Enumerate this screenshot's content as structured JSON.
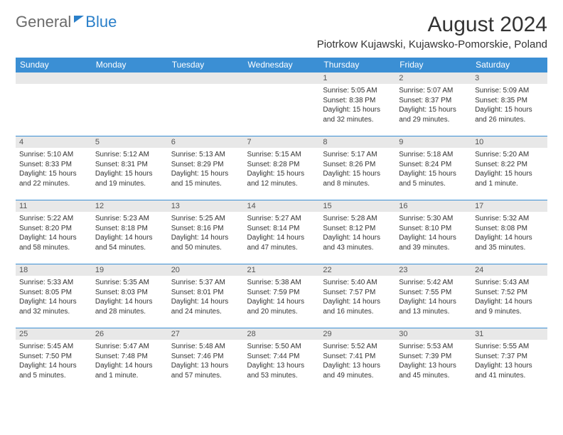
{
  "logo": {
    "text1": "General",
    "text2": "Blue"
  },
  "title": "August 2024",
  "location": "Piotrkow Kujawski, Kujawsko-Pomorskie, Poland",
  "weekdays": [
    "Sunday",
    "Monday",
    "Tuesday",
    "Wednesday",
    "Thursday",
    "Friday",
    "Saturday"
  ],
  "colors": {
    "header_bg": "#3b8fd4",
    "header_text": "#ffffff",
    "daynum_bg": "#e8e8e8",
    "day_border": "#3b8fd4",
    "text": "#333333"
  },
  "weeks": [
    [
      {
        "empty": true
      },
      {
        "empty": true
      },
      {
        "empty": true
      },
      {
        "empty": true
      },
      {
        "num": "1",
        "sunrise": "Sunrise: 5:05 AM",
        "sunset": "Sunset: 8:38 PM",
        "daylight": "Daylight: 15 hours and 32 minutes."
      },
      {
        "num": "2",
        "sunrise": "Sunrise: 5:07 AM",
        "sunset": "Sunset: 8:37 PM",
        "daylight": "Daylight: 15 hours and 29 minutes."
      },
      {
        "num": "3",
        "sunrise": "Sunrise: 5:09 AM",
        "sunset": "Sunset: 8:35 PM",
        "daylight": "Daylight: 15 hours and 26 minutes."
      }
    ],
    [
      {
        "num": "4",
        "sunrise": "Sunrise: 5:10 AM",
        "sunset": "Sunset: 8:33 PM",
        "daylight": "Daylight: 15 hours and 22 minutes."
      },
      {
        "num": "5",
        "sunrise": "Sunrise: 5:12 AM",
        "sunset": "Sunset: 8:31 PM",
        "daylight": "Daylight: 15 hours and 19 minutes."
      },
      {
        "num": "6",
        "sunrise": "Sunrise: 5:13 AM",
        "sunset": "Sunset: 8:29 PM",
        "daylight": "Daylight: 15 hours and 15 minutes."
      },
      {
        "num": "7",
        "sunrise": "Sunrise: 5:15 AM",
        "sunset": "Sunset: 8:28 PM",
        "daylight": "Daylight: 15 hours and 12 minutes."
      },
      {
        "num": "8",
        "sunrise": "Sunrise: 5:17 AM",
        "sunset": "Sunset: 8:26 PM",
        "daylight": "Daylight: 15 hours and 8 minutes."
      },
      {
        "num": "9",
        "sunrise": "Sunrise: 5:18 AM",
        "sunset": "Sunset: 8:24 PM",
        "daylight": "Daylight: 15 hours and 5 minutes."
      },
      {
        "num": "10",
        "sunrise": "Sunrise: 5:20 AM",
        "sunset": "Sunset: 8:22 PM",
        "daylight": "Daylight: 15 hours and 1 minute."
      }
    ],
    [
      {
        "num": "11",
        "sunrise": "Sunrise: 5:22 AM",
        "sunset": "Sunset: 8:20 PM",
        "daylight": "Daylight: 14 hours and 58 minutes."
      },
      {
        "num": "12",
        "sunrise": "Sunrise: 5:23 AM",
        "sunset": "Sunset: 8:18 PM",
        "daylight": "Daylight: 14 hours and 54 minutes."
      },
      {
        "num": "13",
        "sunrise": "Sunrise: 5:25 AM",
        "sunset": "Sunset: 8:16 PM",
        "daylight": "Daylight: 14 hours and 50 minutes."
      },
      {
        "num": "14",
        "sunrise": "Sunrise: 5:27 AM",
        "sunset": "Sunset: 8:14 PM",
        "daylight": "Daylight: 14 hours and 47 minutes."
      },
      {
        "num": "15",
        "sunrise": "Sunrise: 5:28 AM",
        "sunset": "Sunset: 8:12 PM",
        "daylight": "Daylight: 14 hours and 43 minutes."
      },
      {
        "num": "16",
        "sunrise": "Sunrise: 5:30 AM",
        "sunset": "Sunset: 8:10 PM",
        "daylight": "Daylight: 14 hours and 39 minutes."
      },
      {
        "num": "17",
        "sunrise": "Sunrise: 5:32 AM",
        "sunset": "Sunset: 8:08 PM",
        "daylight": "Daylight: 14 hours and 35 minutes."
      }
    ],
    [
      {
        "num": "18",
        "sunrise": "Sunrise: 5:33 AM",
        "sunset": "Sunset: 8:05 PM",
        "daylight": "Daylight: 14 hours and 32 minutes."
      },
      {
        "num": "19",
        "sunrise": "Sunrise: 5:35 AM",
        "sunset": "Sunset: 8:03 PM",
        "daylight": "Daylight: 14 hours and 28 minutes."
      },
      {
        "num": "20",
        "sunrise": "Sunrise: 5:37 AM",
        "sunset": "Sunset: 8:01 PM",
        "daylight": "Daylight: 14 hours and 24 minutes."
      },
      {
        "num": "21",
        "sunrise": "Sunrise: 5:38 AM",
        "sunset": "Sunset: 7:59 PM",
        "daylight": "Daylight: 14 hours and 20 minutes."
      },
      {
        "num": "22",
        "sunrise": "Sunrise: 5:40 AM",
        "sunset": "Sunset: 7:57 PM",
        "daylight": "Daylight: 14 hours and 16 minutes."
      },
      {
        "num": "23",
        "sunrise": "Sunrise: 5:42 AM",
        "sunset": "Sunset: 7:55 PM",
        "daylight": "Daylight: 14 hours and 13 minutes."
      },
      {
        "num": "24",
        "sunrise": "Sunrise: 5:43 AM",
        "sunset": "Sunset: 7:52 PM",
        "daylight": "Daylight: 14 hours and 9 minutes."
      }
    ],
    [
      {
        "num": "25",
        "sunrise": "Sunrise: 5:45 AM",
        "sunset": "Sunset: 7:50 PM",
        "daylight": "Daylight: 14 hours and 5 minutes."
      },
      {
        "num": "26",
        "sunrise": "Sunrise: 5:47 AM",
        "sunset": "Sunset: 7:48 PM",
        "daylight": "Daylight: 14 hours and 1 minute."
      },
      {
        "num": "27",
        "sunrise": "Sunrise: 5:48 AM",
        "sunset": "Sunset: 7:46 PM",
        "daylight": "Daylight: 13 hours and 57 minutes."
      },
      {
        "num": "28",
        "sunrise": "Sunrise: 5:50 AM",
        "sunset": "Sunset: 7:44 PM",
        "daylight": "Daylight: 13 hours and 53 minutes."
      },
      {
        "num": "29",
        "sunrise": "Sunrise: 5:52 AM",
        "sunset": "Sunset: 7:41 PM",
        "daylight": "Daylight: 13 hours and 49 minutes."
      },
      {
        "num": "30",
        "sunrise": "Sunrise: 5:53 AM",
        "sunset": "Sunset: 7:39 PM",
        "daylight": "Daylight: 13 hours and 45 minutes."
      },
      {
        "num": "31",
        "sunrise": "Sunrise: 5:55 AM",
        "sunset": "Sunset: 7:37 PM",
        "daylight": "Daylight: 13 hours and 41 minutes."
      }
    ]
  ]
}
